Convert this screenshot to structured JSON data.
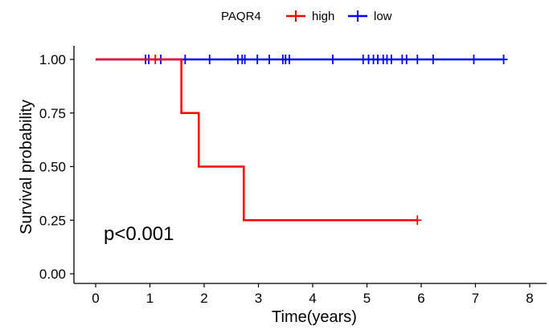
{
  "chart_data": {
    "type": "line",
    "title": "",
    "xlabel": "Time(years)",
    "ylabel": "Survival probability",
    "xlim": [
      0,
      8
    ],
    "ylim": [
      0,
      1
    ],
    "x_ticks": [
      0,
      1,
      2,
      3,
      4,
      5,
      6,
      7,
      8
    ],
    "y_ticks": [
      0.0,
      0.25,
      0.5,
      0.75,
      1.0
    ],
    "x_tick_labels": [
      "0",
      "1",
      "2",
      "3",
      "4",
      "5",
      "6",
      "7",
      "8"
    ],
    "y_tick_labels": [
      "0.00",
      "0.25",
      "0.50",
      "0.75",
      "1.00"
    ],
    "grid": false,
    "legend": {
      "title": "PAQR4",
      "position": "top",
      "entries": [
        "high",
        "low"
      ]
    },
    "annotation": "p<0.001",
    "series": [
      {
        "name": "high",
        "color": "#ff0000",
        "steps": [
          [
            0,
            1.0
          ],
          [
            1.58,
            1.0
          ],
          [
            1.58,
            0.75
          ],
          [
            1.9,
            0.75
          ],
          [
            1.9,
            0.5
          ],
          [
            2.73,
            0.5
          ],
          [
            2.73,
            0.25
          ],
          [
            5.93,
            0.25
          ]
        ],
        "censored_x": [
          1.1,
          5.93
        ],
        "censored_y": [
          1.0,
          0.25
        ]
      },
      {
        "name": "low",
        "color": "#0000ff",
        "steps": [
          [
            0,
            1.0
          ],
          [
            7.52,
            1.0
          ]
        ],
        "censored_x": [
          0.92,
          0.98,
          1.2,
          1.65,
          2.1,
          2.62,
          2.7,
          2.75,
          2.98,
          3.2,
          3.45,
          3.5,
          3.57,
          4.37,
          4.93,
          5.03,
          5.12,
          5.2,
          5.3,
          5.37,
          5.45,
          5.65,
          5.73,
          5.93,
          6.22,
          6.97,
          7.52
        ],
        "censored_y": [
          1.0,
          1.0,
          1.0,
          1.0,
          1.0,
          1.0,
          1.0,
          1.0,
          1.0,
          1.0,
          1.0,
          1.0,
          1.0,
          1.0,
          1.0,
          1.0,
          1.0,
          1.0,
          1.0,
          1.0,
          1.0,
          1.0,
          1.0,
          1.0,
          1.0,
          1.0,
          1.0
        ]
      }
    ]
  }
}
